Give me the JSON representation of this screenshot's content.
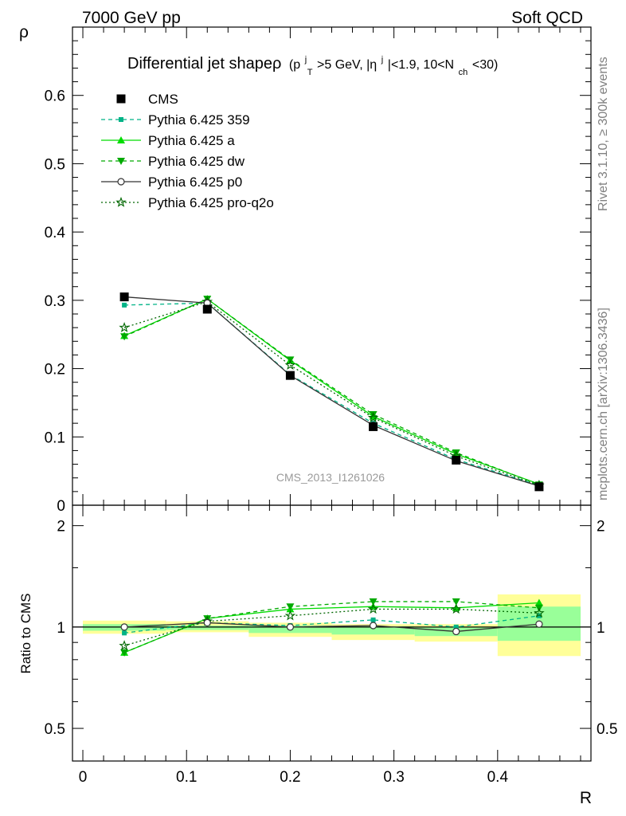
{
  "header": {
    "left": "7000 GeV pp",
    "right": "Soft QCD"
  },
  "title": {
    "main": "Differential jet shapeρ",
    "sub": "(p",
    "sub_sup1": "j",
    "sub_sub1": "T",
    "sub_mid": ">5 GeV, |η",
    "sub_sup2": "j",
    "sub_mid2": "|<1.9, 10<N",
    "sub_sub2": "ch",
    "sub_end": "<30)"
  },
  "side_labels": {
    "rivet": "Rivet 3.1.10, ≥ 300k events",
    "mcplots": "mcplots.cern.ch [arXiv:1306.3436]"
  },
  "watermark": "CMS_2013_I1261026",
  "colors": {
    "cms": "#000000",
    "p359": "#00b386",
    "pa": "#00dd00",
    "pdw": "#00aa00",
    "pp0": "#333333",
    "pq2o": "#006600",
    "band_outer": "#ffff99",
    "band_inner": "#99ff99"
  },
  "chart_data": {
    "type": "line",
    "xlabel": "R",
    "ylabel_main": "ρ",
    "ylabel_ratio": "Ratio to CMS",
    "xlim": [
      -0.01,
      0.49
    ],
    "ylim_main": [
      0,
      0.7
    ],
    "ylim_ratio": [
      0.4,
      2.3
    ],
    "x_ticks": [
      "0",
      "0.1",
      "0.2",
      "0.3",
      "0.4"
    ],
    "y_ticks_main": [
      "0.1",
      "0.2",
      "0.3",
      "0.4",
      "0.5",
      "0.6"
    ],
    "y_tick_main_zero": "0",
    "y_ticks_ratio": [
      "0.5",
      "1",
      "2"
    ],
    "x": [
      0.04,
      0.12,
      0.2,
      0.28,
      0.36,
      0.44
    ],
    "bins": [
      [
        0.0,
        0.08
      ],
      [
        0.08,
        0.16
      ],
      [
        0.16,
        0.24
      ],
      [
        0.24,
        0.32
      ],
      [
        0.32,
        0.4
      ],
      [
        0.4,
        0.48
      ]
    ],
    "band_outer": [
      [
        0.955,
        1.045
      ],
      [
        0.965,
        1.04
      ],
      [
        0.935,
        1.03
      ],
      [
        0.915,
        1.02
      ],
      [
        0.905,
        1.02
      ],
      [
        0.82,
        1.25
      ]
    ],
    "band_inner": [
      [
        0.975,
        1.02
      ],
      [
        0.98,
        1.01
      ],
      [
        0.96,
        1.01
      ],
      [
        0.95,
        1.005
      ],
      [
        0.94,
        1.0
      ],
      [
        0.91,
        1.15
      ]
    ],
    "series": [
      {
        "name": "CMS",
        "key": "cms",
        "values": [
          0.305,
          0.287,
          0.19,
          0.115,
          0.066,
          0.027
        ],
        "ratio": [
          1.0,
          1.0,
          1.0,
          1.0,
          1.0,
          1.0
        ]
      },
      {
        "name": "Pythia 6.425 359",
        "key": "p359",
        "values": [
          0.293,
          0.296,
          0.191,
          0.12,
          0.067,
          0.029
        ],
        "ratio": [
          0.96,
          1.03,
          1.01,
          1.05,
          1.0,
          1.08
        ]
      },
      {
        "name": "Pythia 6.425 a",
        "key": "pa",
        "values": [
          0.248,
          0.302,
          0.212,
          0.13,
          0.075,
          0.031
        ],
        "ratio": [
          0.84,
          1.06,
          1.13,
          1.15,
          1.14,
          1.18
        ]
      },
      {
        "name": "Pythia 6.425 dw",
        "key": "pdw",
        "values": [
          0.247,
          0.302,
          0.213,
          0.133,
          0.077,
          0.03
        ],
        "ratio": [
          0.84,
          1.06,
          1.15,
          1.19,
          1.19,
          1.14
        ]
      },
      {
        "name": "Pythia 6.425 p0",
        "key": "pp0",
        "values": [
          0.305,
          0.296,
          0.19,
          0.117,
          0.065,
          0.028
        ],
        "ratio": [
          1.0,
          1.03,
          1.0,
          1.01,
          0.97,
          1.02
        ]
      },
      {
        "name": "Pythia 6.425 pro-q2o",
        "key": "pq2o",
        "values": [
          0.26,
          0.298,
          0.205,
          0.128,
          0.072,
          0.029
        ],
        "ratio": [
          0.88,
          1.04,
          1.08,
          1.13,
          1.13,
          1.1
        ]
      }
    ]
  }
}
